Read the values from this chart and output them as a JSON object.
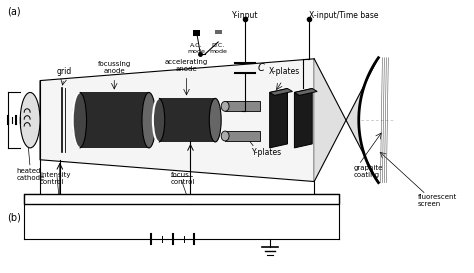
{
  "bg_color": "#ffffff",
  "label_a": "(a)",
  "label_b": "(b)",
  "labels": {
    "heated_cathode": "heated\ncathode",
    "grid": "grid",
    "focussing_anode": "focussing\nanode",
    "accelerating_anode": "accelerating\nanode",
    "x_plates": "X-plates",
    "y_plates": "Y-plates",
    "intensity_control": "intensity\ncontrol",
    "focus_control": "focus\ncontrol",
    "graphite_coating": "graphite\ncoating",
    "fluorescent_screen": "fluorescent\nscreen",
    "y_input": "Y-input",
    "x_input_time_base": "X-input/Time base",
    "ac_mode": "A.C.\nmode",
    "dc_mode": "D.C.\nmode",
    "C_label": "C"
  },
  "colors": {
    "black": "#000000",
    "gray": "#888888",
    "light_gray": "#cccccc",
    "dark_gray": "#555555",
    "mid_gray": "#999999"
  }
}
